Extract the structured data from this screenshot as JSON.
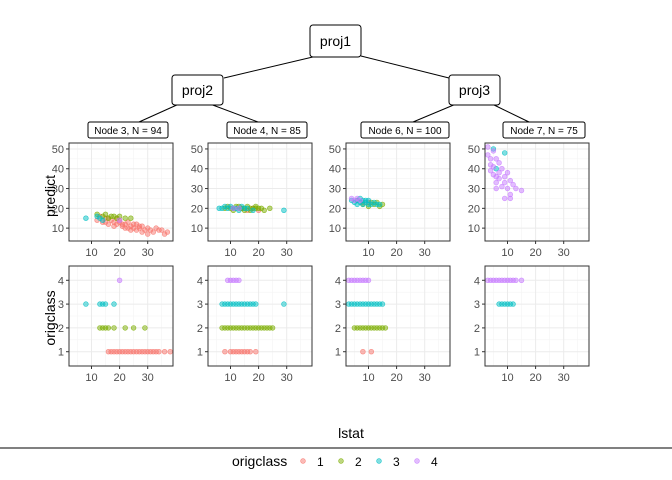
{
  "colors": {
    "1": "#F8766D",
    "2": "#7CAE00",
    "3": "#00BFC4",
    "4": "#C77CFF"
  },
  "tree": {
    "root": "proj1",
    "inner": [
      "proj2",
      "proj3"
    ],
    "leaves": [
      "Node 3, N = 94",
      "Node 4, N = 85",
      "Node 6, N = 100",
      "Node 7, N = 75"
    ]
  },
  "axes": {
    "x_title": "lstat",
    "y_titles": [
      "predict",
      "origclass"
    ],
    "x_ticks": [
      "10",
      "20",
      "30"
    ],
    "y_ticks_predict": [
      "10",
      "20",
      "30",
      "40",
      "50"
    ],
    "y_ticks_origclass": [
      "1",
      "2",
      "3",
      "4"
    ]
  },
  "legend": {
    "title": "origclass",
    "keys": [
      "1",
      "2",
      "3",
      "4"
    ]
  },
  "chart_data": {
    "type": "scatter",
    "xlabel": "lstat",
    "xlim": [
      2,
      39
    ],
    "ylim_predict": [
      3.5,
      53
    ],
    "ylim_origclass": [
      0.4,
      4.6
    ],
    "grid": true,
    "legend_position": "bottom",
    "panels": [
      {
        "node": "Node 3, N = 94",
        "predict": {
          "1": [
            [
              12,
              14
            ],
            [
              13,
              16
            ],
            [
              14,
              13
            ],
            [
              15,
              15
            ],
            [
              16,
              12
            ],
            [
              17,
              14
            ],
            [
              18,
              13
            ],
            [
              19,
              12
            ],
            [
              20,
              13
            ],
            [
              21,
              11
            ],
            [
              22,
              12
            ],
            [
              23,
              10
            ],
            [
              24,
              11
            ],
            [
              25,
              12
            ],
            [
              26,
              9
            ],
            [
              27,
              10
            ],
            [
              28,
              11
            ],
            [
              29,
              9
            ],
            [
              30,
              10
            ],
            [
              32,
              8
            ],
            [
              34,
              9
            ],
            [
              36,
              7
            ],
            [
              37,
              8
            ],
            [
              16,
              15
            ],
            [
              18,
              11
            ],
            [
              20,
              14
            ],
            [
              22,
              10
            ],
            [
              24,
              9
            ],
            [
              26,
              12
            ],
            [
              28,
              8
            ],
            [
              30,
              7
            ],
            [
              33,
              10
            ],
            [
              35,
              9
            ],
            [
              15,
              13
            ],
            [
              19,
              15
            ],
            [
              21,
              12
            ],
            [
              23,
              13
            ],
            [
              25,
              10
            ],
            [
              27,
              11
            ],
            [
              31,
              9
            ]
          ],
          "2": [
            [
              12,
              17
            ],
            [
              14,
              16
            ],
            [
              15,
              17
            ],
            [
              16,
              15
            ],
            [
              17,
              16
            ],
            [
              18,
              16
            ],
            [
              19,
              15
            ],
            [
              20,
              16
            ],
            [
              22,
              15
            ],
            [
              24,
              15
            ]
          ],
          "3": [
            [
              8,
              15
            ],
            [
              12,
              16
            ],
            [
              13,
              15
            ],
            [
              14,
              14
            ]
          ],
          "4": [
            [
              20,
              14
            ]
          ]
        },
        "origclass": {
          "1": [
            16,
            17,
            18,
            19,
            20,
            21,
            22,
            23,
            24,
            25,
            26,
            27,
            28,
            29,
            30,
            31,
            32,
            33,
            34,
            36,
            38
          ],
          "2": [
            13,
            14,
            15,
            16,
            18,
            22,
            25,
            29
          ],
          "3": [
            8,
            13,
            14,
            15,
            18
          ],
          "4": [
            20
          ]
        }
      },
      {
        "node": "Node 4, N = 85",
        "predict": {
          "1": [
            [
              14,
              20
            ],
            [
              16,
              19
            ],
            [
              18,
              20
            ],
            [
              20,
              19
            ]
          ],
          "2": [
            [
              8,
              20
            ],
            [
              9,
              21
            ],
            [
              10,
              20
            ],
            [
              11,
              20
            ],
            [
              12,
              21
            ],
            [
              13,
              20
            ],
            [
              14,
              20
            ],
            [
              15,
              19
            ],
            [
              16,
              21
            ],
            [
              17,
              20
            ],
            [
              18,
              20
            ],
            [
              19,
              21
            ],
            [
              20,
              20
            ],
            [
              21,
              20
            ],
            [
              22,
              19
            ],
            [
              24,
              20
            ],
            [
              11,
              19
            ],
            [
              13,
              21
            ],
            [
              15,
              20
            ],
            [
              17,
              19
            ],
            [
              19,
              20
            ]
          ],
          "3": [
            [
              6,
              20
            ],
            [
              7,
              20
            ],
            [
              8,
              21
            ],
            [
              9,
              20
            ],
            [
              10,
              21
            ],
            [
              11,
              20
            ],
            [
              12,
              20
            ],
            [
              13,
              19
            ],
            [
              14,
              21
            ],
            [
              15,
              20
            ],
            [
              16,
              20
            ],
            [
              18,
              19
            ],
            [
              29,
              19
            ]
          ],
          "4": [
            [
              11,
              20
            ],
            [
              13,
              20
            ]
          ]
        },
        "origclass": {
          "1": [
            8,
            10,
            11,
            12,
            13,
            14,
            15,
            16,
            17,
            19
          ],
          "2": [
            7,
            8,
            9,
            10,
            11,
            12,
            13,
            14,
            15,
            16,
            17,
            18,
            19,
            20,
            21,
            22,
            23,
            24,
            25
          ],
          "3": [
            7,
            8,
            9,
            10,
            11,
            12,
            13,
            14,
            15,
            16,
            17,
            18,
            19,
            29
          ],
          "4": [
            9,
            10,
            11,
            12,
            13
          ]
        }
      },
      {
        "node": "Node 6, N = 100",
        "predict": {
          "1": [
            [
              6,
              24
            ],
            [
              8,
              23
            ],
            [
              10,
              23
            ]
          ],
          "2": [
            [
              8,
              22
            ],
            [
              10,
              21
            ],
            [
              11,
              23
            ],
            [
              12,
              22
            ],
            [
              13,
              23
            ],
            [
              14,
              21
            ],
            [
              15,
              22
            ]
          ],
          "3": [
            [
              4,
              24
            ],
            [
              5,
              23
            ],
            [
              6,
              24
            ],
            [
              6,
              22
            ],
            [
              7,
              25
            ],
            [
              7,
              23
            ],
            [
              8,
              24
            ],
            [
              8,
              22
            ],
            [
              9,
              23
            ],
            [
              9,
              24
            ],
            [
              10,
              22
            ],
            [
              10,
              24
            ],
            [
              11,
              22
            ],
            [
              12,
              23
            ],
            [
              13,
              22
            ],
            [
              14,
              22
            ]
          ],
          "4": [
            [
              4,
              25
            ],
            [
              5,
              24
            ],
            [
              6,
              25
            ],
            [
              7,
              24
            ]
          ]
        },
        "origclass": {
          "1": [
            8,
            11
          ],
          "2": [
            5,
            6,
            7,
            8,
            9,
            10,
            11,
            12,
            13,
            14,
            15,
            16
          ],
          "3": [
            3,
            4,
            5,
            6,
            7,
            8,
            9,
            10,
            11,
            12,
            13,
            14,
            15
          ],
          "4": [
            3,
            4,
            5,
            6,
            7,
            8,
            9,
            10
          ]
        }
      },
      {
        "node": "Node 7, N = 75",
        "predict": {
          "1": [],
          "2": [],
          "3": [
            [
              5,
              50
            ],
            [
              9,
              48
            ],
            [
              6,
              40
            ]
          ],
          "4": [
            [
              3,
              51
            ],
            [
              3,
              47
            ],
            [
              4,
              45
            ],
            [
              4,
              42
            ],
            [
              5,
              49
            ],
            [
              5,
              41
            ],
            [
              5,
              37
            ],
            [
              6,
              45
            ],
            [
              6,
              36
            ],
            [
              6,
              33
            ],
            [
              7,
              43
            ],
            [
              7,
              38
            ],
            [
              7,
              35
            ],
            [
              8,
              40
            ],
            [
              8,
              31
            ],
            [
              9,
              36
            ],
            [
              9,
              33
            ],
            [
              10,
              38
            ],
            [
              10,
              30
            ],
            [
              11,
              34
            ],
            [
              11,
              27
            ],
            [
              12,
              32
            ],
            [
              13,
              30
            ],
            [
              15,
              29
            ],
            [
              9,
              25
            ],
            [
              11,
              25
            ],
            [
              4,
              39
            ],
            [
              6,
              30
            ]
          ]
        },
        "origclass": {
          "1": [],
          "2": [],
          "3": [
            7,
            8,
            9,
            10,
            11,
            12
          ],
          "4": [
            3,
            4,
            5,
            6,
            7,
            8,
            9,
            10,
            11,
            12,
            13,
            15
          ]
        }
      }
    ]
  }
}
